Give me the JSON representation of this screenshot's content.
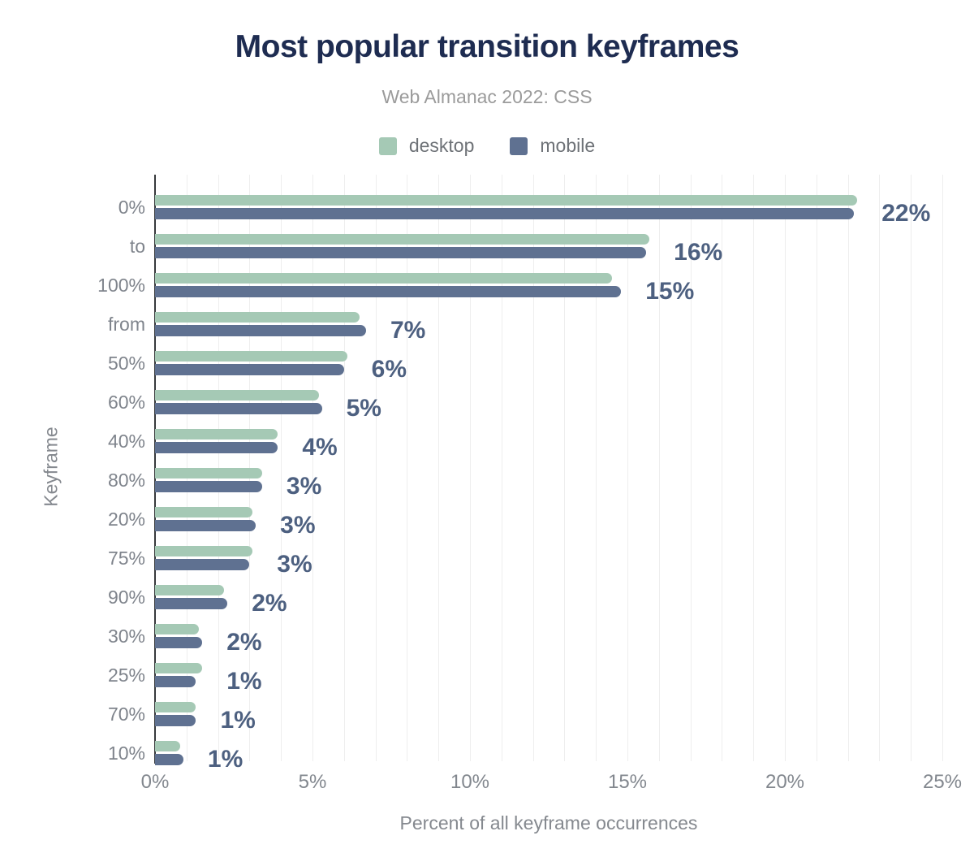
{
  "chart_data": {
    "type": "bar",
    "orientation": "horizontal",
    "title": "Most popular transition keyframes",
    "subtitle": "Web Almanac 2022: CSS",
    "xlabel": "Percent of all keyframe occurrences",
    "ylabel": "Keyframe",
    "xlim": [
      0,
      25
    ],
    "x_ticks": [
      {
        "label": "0%",
        "value": 0
      },
      {
        "label": "5%",
        "value": 5
      },
      {
        "label": "10%",
        "value": 10
      },
      {
        "label": "15%",
        "value": 15
      },
      {
        "label": "20%",
        "value": 20
      },
      {
        "label": "25%",
        "value": 25
      }
    ],
    "grid": "vertical-light-every-1pct",
    "legend_position": "top-center",
    "categories": [
      "0%",
      "to",
      "100%",
      "from",
      "50%",
      "60%",
      "40%",
      "80%",
      "20%",
      "75%",
      "90%",
      "30%",
      "25%",
      "70%",
      "10%"
    ],
    "series": [
      {
        "name": "desktop",
        "color": "#a5c9b5",
        "values": [
          22.3,
          15.7,
          14.5,
          6.5,
          6.1,
          5.2,
          3.9,
          3.4,
          3.1,
          3.1,
          2.2,
          1.4,
          1.5,
          1.3,
          0.8
        ]
      },
      {
        "name": "mobile",
        "color": "#5f7191",
        "values": [
          22.2,
          15.6,
          14.8,
          6.7,
          6.0,
          5.3,
          3.9,
          3.4,
          3.2,
          3.0,
          2.3,
          1.5,
          1.3,
          1.3,
          0.9
        ]
      }
    ],
    "value_labels": [
      "22%",
      "16%",
      "15%",
      "7%",
      "6%",
      "5%",
      "4%",
      "3%",
      "3%",
      "3%",
      "2%",
      "2%",
      "1%",
      "1%",
      "1%"
    ]
  },
  "colors": {
    "title": "#1e2c51",
    "subtitle": "#9b9b9b",
    "axis_line": "#37393c",
    "gridline": "#eeeeee",
    "category_label": "#7f848c",
    "value_label": "#4d6080",
    "desktop": "#a5c9b5",
    "mobile": "#5f7191"
  }
}
